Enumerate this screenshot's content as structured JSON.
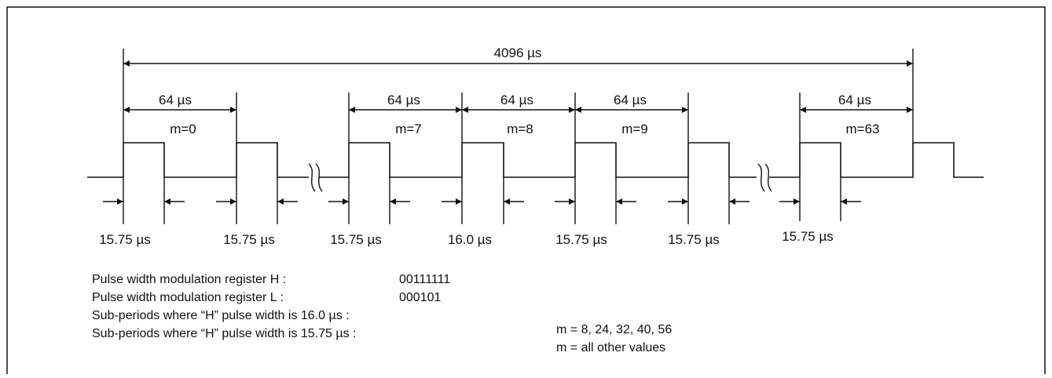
{
  "total_period": "4096 µs",
  "sub_periods": [
    {
      "width": "64 µs",
      "m": "m=0"
    },
    {
      "width": "64 µs",
      "m": "m=7"
    },
    {
      "width": "64 µs",
      "m": "m=8"
    },
    {
      "width": "64 µs",
      "m": "m=9"
    },
    {
      "width": "64 µs",
      "m": "m=63"
    }
  ],
  "pulse_widths": [
    "15.75 µs",
    "15.75 µs",
    "15.75 µs",
    "16.0 µs",
    "15.75 µs",
    "15.75 µs",
    "15.75 µs"
  ],
  "registers": [
    {
      "label": "Pulse width modulation register H  :",
      "value": "00111111"
    },
    {
      "label": "Pulse width modulation register L  :",
      "value": "000101"
    }
  ],
  "sub_period_notes": [
    {
      "label": "Sub-periods where “H” pulse width is 16.0 µs :",
      "value": "m = 8, 24, 32, 40, 56"
    },
    {
      "label": "Sub-periods where “H” pulse width is 15.75 µs :",
      "value": "m = all other values"
    }
  ]
}
